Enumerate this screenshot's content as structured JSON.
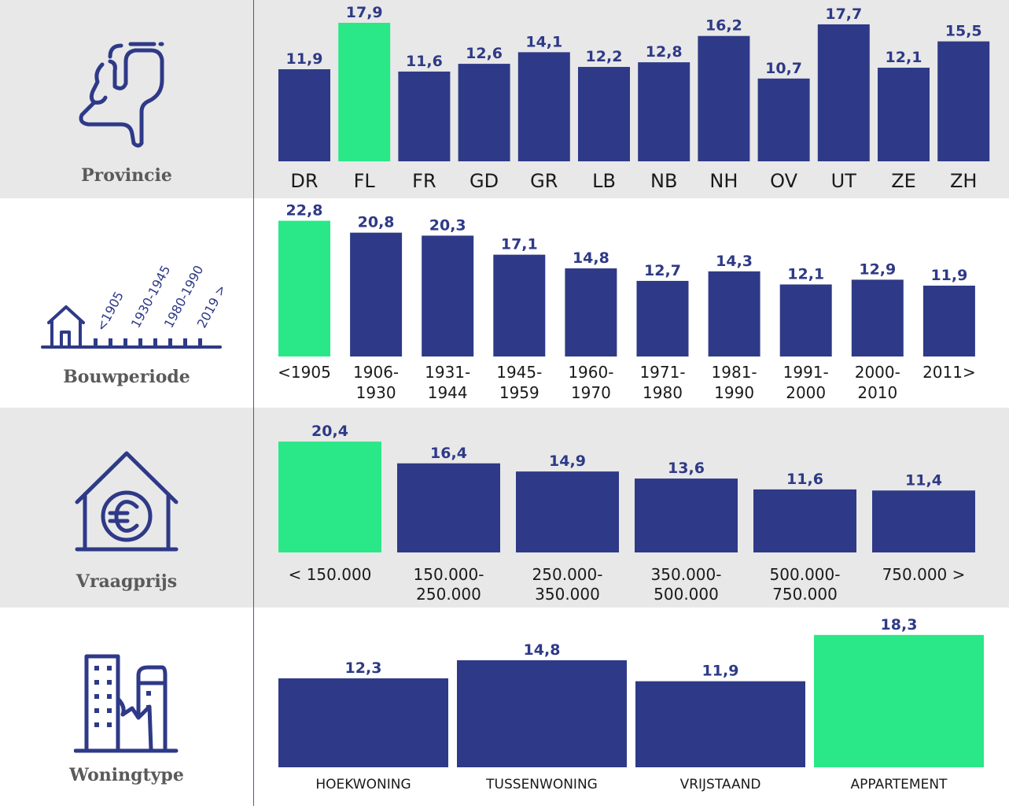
{
  "colors": {
    "bar": "#2e3a87",
    "highlight": "#2ae887",
    "icon": "#2e3a87"
  },
  "sections": {
    "provincie": {
      "label": "Provincie"
    },
    "bouwperiode": {
      "label": "Bouwperiode",
      "icon_labels": [
        "<1905",
        "1930-1945",
        "1980-1990",
        "2019 >"
      ]
    },
    "vraagprijs": {
      "label": "Vraagprijs"
    },
    "woningtype": {
      "label": "Woningtype"
    }
  },
  "chart_data": [
    {
      "type": "bar",
      "title": "Provincie",
      "categories": [
        "DR",
        "FL",
        "FR",
        "GD",
        "GR",
        "LB",
        "NB",
        "NH",
        "OV",
        "UT",
        "ZE",
        "ZH"
      ],
      "values": [
        "11,9",
        "17,9",
        "11,6",
        "12,6",
        "14,1",
        "12,2",
        "12,8",
        "16,2",
        "10,7",
        "17,7",
        "12,1",
        "15,5"
      ],
      "highlight_index": 1,
      "ylim": [
        0,
        18
      ]
    },
    {
      "type": "bar",
      "title": "Bouwperiode",
      "categories": [
        "<1905",
        "1906-\n1930",
        "1931-\n1944",
        "1945-\n1959",
        "1960-\n1970",
        "1971-\n1980",
        "1981-\n1990",
        "1991-\n2000",
        "2000-\n2010",
        "2011>"
      ],
      "values": [
        "22,8",
        "20,8",
        "20,3",
        "17,1",
        "14,8",
        "12,7",
        "14,3",
        "12,1",
        "12,9",
        "11,9"
      ],
      "highlight_index": 0,
      "ylim": [
        0,
        23
      ]
    },
    {
      "type": "bar",
      "title": "Vraagprijs",
      "categories": [
        "< 150.000",
        "150.000-\n250.000",
        "250.000-\n350.000",
        "350.000-\n500.000",
        "500.000-\n750.000",
        "750.000 >"
      ],
      "values": [
        "20,4",
        "16,4",
        "14,9",
        "13,6",
        "11,6",
        "11,4"
      ],
      "highlight_index": 0,
      "ylim": [
        0,
        21
      ]
    },
    {
      "type": "bar",
      "title": "Woningtype",
      "categories": [
        "HOEKWONING",
        "TUSSENWONING",
        "VRIJSTAAND",
        "APPARTEMENT"
      ],
      "values": [
        "12,3",
        "14,8",
        "11,9",
        "18,3"
      ],
      "highlight_index": 3,
      "ylim": [
        0,
        18.5
      ]
    }
  ]
}
